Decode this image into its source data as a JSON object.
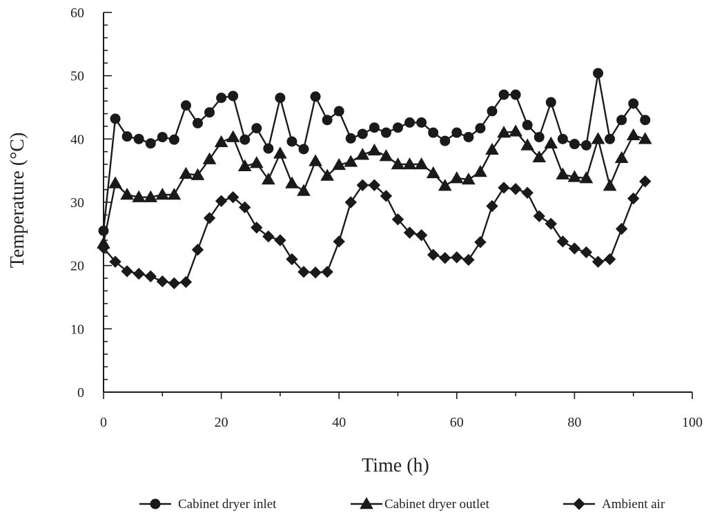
{
  "chart_data": {
    "type": "line",
    "title": "",
    "xlabel": "Time (h)",
    "ylabel": "Temperature (°C)",
    "xlim": [
      0,
      100
    ],
    "ylim": [
      0,
      60
    ],
    "xticks": [
      0,
      20,
      40,
      60,
      80,
      100
    ],
    "yticks": [
      0,
      10,
      20,
      30,
      40,
      50,
      60
    ],
    "grid": false,
    "legend_position": "bottom",
    "series": [
      {
        "name": "Cabinet dryer inlet",
        "marker": "circle",
        "x": [
          0,
          2,
          4,
          6,
          8,
          10,
          12,
          14,
          16,
          18,
          20,
          22,
          24,
          26,
          28,
          30,
          32,
          34,
          36,
          38,
          40,
          42,
          44,
          46,
          48,
          50,
          52,
          54,
          56,
          58,
          60,
          62,
          64,
          66,
          68,
          70,
          72,
          74,
          76,
          78,
          80,
          82,
          84,
          86,
          88,
          90,
          92
        ],
        "y": [
          25.5,
          43.2,
          40.4,
          40.0,
          39.3,
          40.3,
          39.9,
          45.3,
          42.5,
          44.2,
          46.5,
          46.8,
          39.9,
          41.7,
          38.5,
          46.5,
          39.6,
          38.4,
          46.7,
          43.0,
          44.4,
          40.1,
          40.8,
          41.8,
          41.0,
          41.8,
          42.6,
          42.6,
          41.0,
          39.7,
          41.0,
          40.3,
          41.7,
          44.4,
          47.0,
          47.0,
          42.2,
          40.3,
          45.8,
          40.0,
          39.2,
          39.0,
          50.4,
          40.0,
          43.0,
          45.6,
          43.0
        ]
      },
      {
        "name": "Cabinet dryer outlet",
        "marker": "triangle",
        "x": [
          0,
          2,
          4,
          6,
          8,
          10,
          12,
          14,
          16,
          18,
          20,
          22,
          24,
          26,
          28,
          30,
          32,
          34,
          36,
          38,
          40,
          42,
          44,
          46,
          48,
          50,
          52,
          54,
          56,
          58,
          60,
          62,
          64,
          66,
          68,
          70,
          72,
          74,
          76,
          78,
          80,
          82,
          84,
          86,
          88,
          90,
          92
        ],
        "y": [
          23.5,
          33.0,
          31.2,
          30.8,
          30.8,
          31.2,
          31.2,
          34.5,
          34.3,
          36.8,
          39.5,
          40.3,
          35.7,
          36.2,
          33.6,
          37.7,
          33.0,
          31.8,
          36.5,
          34.2,
          35.9,
          36.4,
          37.5,
          38.2,
          37.3,
          36.0,
          36.0,
          36.0,
          34.6,
          32.6,
          33.8,
          33.6,
          34.8,
          38.3,
          41.0,
          41.2,
          39.0,
          37.1,
          39.3,
          34.4,
          34.0,
          33.8,
          40.0,
          32.6,
          37.0,
          40.6,
          40.0
        ]
      },
      {
        "name": "Ambient air",
        "marker": "diamond",
        "x": [
          0,
          2,
          4,
          6,
          8,
          10,
          12,
          14,
          16,
          18,
          20,
          22,
          24,
          26,
          28,
          30,
          32,
          34,
          36,
          38,
          40,
          42,
          44,
          46,
          48,
          50,
          52,
          54,
          56,
          58,
          60,
          62,
          64,
          66,
          68,
          70,
          72,
          74,
          76,
          78,
          80,
          82,
          84,
          86,
          88,
          90,
          92
        ],
        "y": [
          22.8,
          20.6,
          19.1,
          18.7,
          18.3,
          17.5,
          17.2,
          17.4,
          22.5,
          27.5,
          30.2,
          30.8,
          29.2,
          26.0,
          24.6,
          24.0,
          21.0,
          19.0,
          18.9,
          19.0,
          23.8,
          30.0,
          32.7,
          32.7,
          31.0,
          27.3,
          25.2,
          24.8,
          21.7,
          21.2,
          21.3,
          20.9,
          23.7,
          29.4,
          32.3,
          32.1,
          31.5,
          27.8,
          26.6,
          23.8,
          22.7,
          22.1,
          20.6,
          21.0,
          25.8,
          30.6,
          33.3
        ]
      }
    ]
  }
}
